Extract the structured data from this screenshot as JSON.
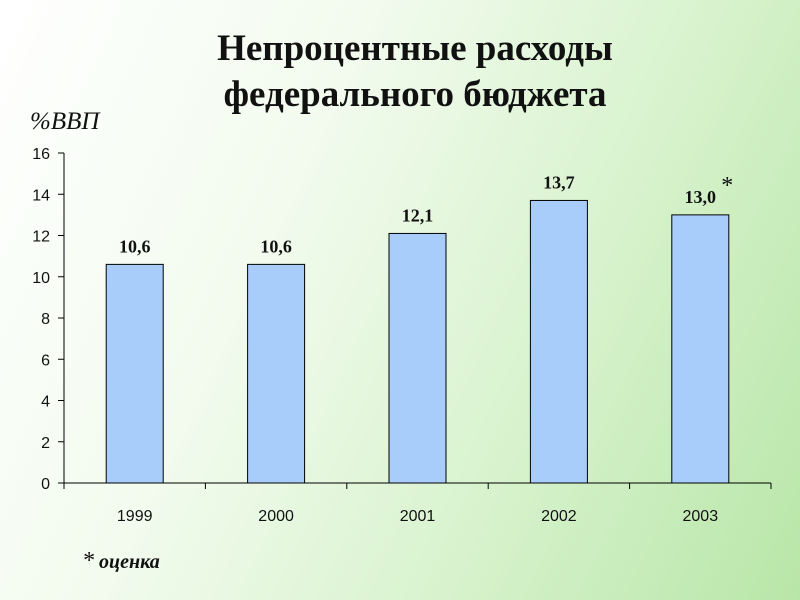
{
  "header": {
    "title_line1": "Непроцентные  расходы",
    "title_line2": "федерального бюджета"
  },
  "footnote": {
    "star": "*",
    "text": "оценка"
  },
  "colors": {
    "bar_fill": "#a9cdfb",
    "bar_stroke": "#000000",
    "axis": "#000000"
  },
  "chart_data": {
    "type": "bar",
    "title": "Непроцентные  расходы федерального бюджета",
    "ylabel": "%ВВП",
    "xlabel": "",
    "categories": [
      "1999",
      "2000",
      "2001",
      "2002",
      "2003"
    ],
    "values": [
      10.6,
      10.6,
      12.1,
      13.7,
      13.0
    ],
    "data_labels": [
      "10,6",
      "10,6",
      "12,1",
      "13,7",
      "13,0"
    ],
    "annotations": [
      {
        "category": "2003",
        "text": "*"
      }
    ],
    "ylim": [
      0,
      16
    ],
    "yticks": [
      0,
      2,
      4,
      6,
      8,
      10,
      12,
      14,
      16
    ],
    "grid": false,
    "legend": "none"
  }
}
